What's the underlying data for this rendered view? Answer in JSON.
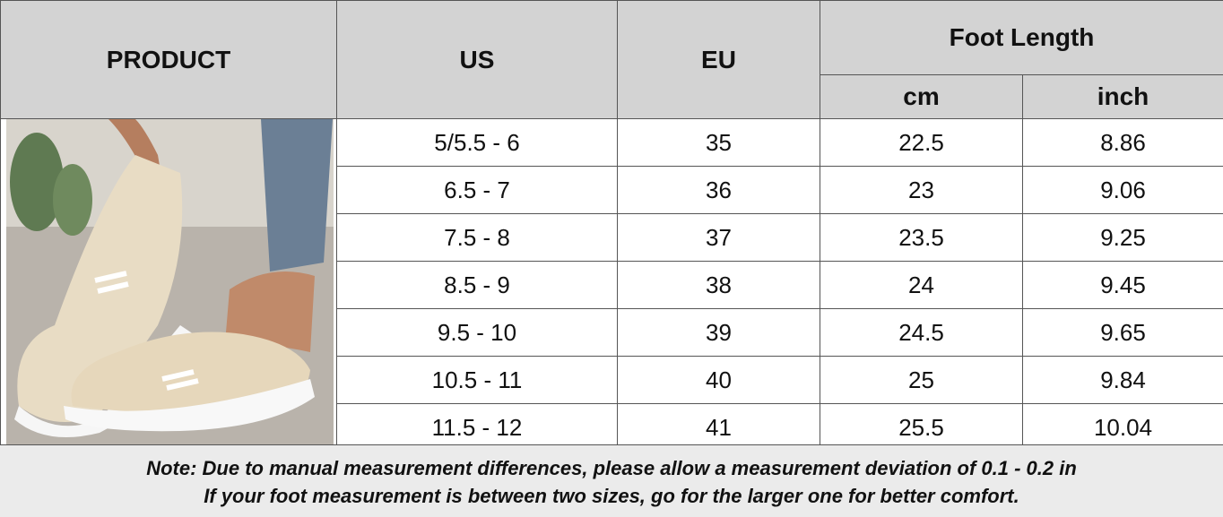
{
  "table": {
    "headers": {
      "product": "PRODUCT",
      "us": "US",
      "eu": "EU",
      "foot_length": "Foot Length",
      "cm": "cm",
      "inch": "inch"
    },
    "rows": [
      [
        "5/5.5 - 6",
        "35",
        "22.5",
        "8.86"
      ],
      [
        "6.5 - 7",
        "36",
        "23",
        "9.06"
      ],
      [
        "7.5 - 8",
        "37",
        "23.5",
        "9.25"
      ],
      [
        "8.5 - 9",
        "38",
        "24",
        "9.45"
      ],
      [
        "9.5 - 10",
        "39",
        "24.5",
        "9.65"
      ],
      [
        "10.5 - 11",
        "40",
        "25",
        "9.84"
      ],
      [
        "11.5 - 12",
        "41",
        "25.5",
        "10.04"
      ]
    ]
  },
  "notes": [
    "Note: Due to manual measurement differences, please allow a measurement deviation of 0.1 - 0.2 in",
    "If your foot measurement is between two sizes, go for the larger one for better comfort."
  ]
}
